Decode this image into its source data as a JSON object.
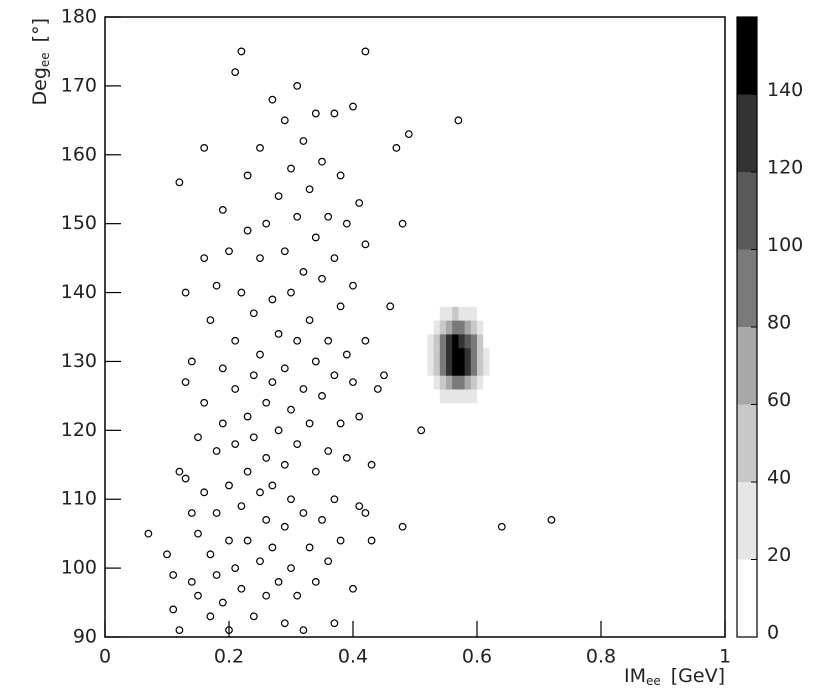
{
  "chart_data": {
    "type": "scatter",
    "x_label": {
      "main": "IM",
      "sub": "ee",
      "unit": "[GeV]"
    },
    "y_label": {
      "main": "Deg",
      "sub": "ee",
      "unit": "[°]"
    },
    "xlim": [
      0,
      1
    ],
    "xticks": [
      0,
      0.2,
      0.4,
      0.6,
      0.8,
      1
    ],
    "ylim": [
      90,
      180
    ],
    "yticks": [
      90,
      100,
      110,
      120,
      130,
      140,
      150,
      160,
      170,
      180
    ],
    "marker_color": "#000000",
    "x": [
      0.07,
      0.1,
      0.11,
      0.11,
      0.12,
      0.12,
      0.12,
      0.13,
      0.13,
      0.13,
      0.14,
      0.14,
      0.14,
      0.15,
      0.15,
      0.15,
      0.16,
      0.16,
      0.16,
      0.16,
      0.17,
      0.17,
      0.17,
      0.18,
      0.18,
      0.18,
      0.18,
      0.19,
      0.19,
      0.19,
      0.19,
      0.2,
      0.2,
      0.2,
      0.2,
      0.21,
      0.21,
      0.21,
      0.21,
      0.21,
      0.22,
      0.22,
      0.22,
      0.22,
      0.23,
      0.23,
      0.23,
      0.23,
      0.23,
      0.24,
      0.24,
      0.24,
      0.24,
      0.25,
      0.25,
      0.25,
      0.25,
      0.25,
      0.26,
      0.26,
      0.26,
      0.26,
      0.26,
      0.27,
      0.27,
      0.27,
      0.27,
      0.27,
      0.28,
      0.28,
      0.28,
      0.28,
      0.29,
      0.29,
      0.29,
      0.29,
      0.29,
      0.29,
      0.3,
      0.3,
      0.3,
      0.3,
      0.3,
      0.31,
      0.31,
      0.31,
      0.31,
      0.31,
      0.32,
      0.32,
      0.32,
      0.32,
      0.32,
      0.33,
      0.33,
      0.33,
      0.33,
      0.34,
      0.34,
      0.34,
      0.34,
      0.34,
      0.35,
      0.35,
      0.35,
      0.35,
      0.36,
      0.36,
      0.36,
      0.36,
      0.37,
      0.37,
      0.37,
      0.37,
      0.37,
      0.38,
      0.38,
      0.38,
      0.38,
      0.39,
      0.39,
      0.39,
      0.4,
      0.4,
      0.4,
      0.4,
      0.41,
      0.41,
      0.41,
      0.42,
      0.42,
      0.42,
      0.42,
      0.43,
      0.43,
      0.44,
      0.45,
      0.46,
      0.47,
      0.48,
      0.48,
      0.49,
      0.51,
      0.57,
      0.64,
      0.72
    ],
    "y": [
      105,
      102,
      99,
      94,
      91,
      114,
      156,
      140,
      127,
      113,
      108,
      98,
      130,
      119,
      105,
      96,
      145,
      161,
      124,
      111,
      102,
      93,
      136,
      117,
      108,
      99,
      141,
      152,
      129,
      121,
      95,
      146,
      112,
      104,
      91,
      172,
      133,
      126,
      118,
      100,
      175,
      140,
      109,
      97,
      157,
      149,
      122,
      114,
      104,
      137,
      128,
      119,
      93,
      161,
      145,
      131,
      111,
      101,
      150,
      124,
      116,
      107,
      96,
      168,
      139,
      127,
      112,
      103,
      154,
      134,
      120,
      98,
      165,
      146,
      129,
      115,
      106,
      92,
      158,
      140,
      123,
      110,
      100,
      170,
      151,
      133,
      118,
      96,
      162,
      143,
      126,
      108,
      91,
      155,
      136,
      121,
      103,
      166,
      148,
      130,
      114,
      98,
      159,
      142,
      125,
      107,
      151,
      133,
      117,
      101,
      166,
      145,
      128,
      110,
      92,
      157,
      138,
      121,
      104,
      150,
      131,
      116,
      167,
      141,
      127,
      97,
      153,
      122,
      109,
      175,
      147,
      133,
      108,
      115,
      104,
      126,
      128,
      138,
      161,
      150,
      106,
      163,
      120,
      165,
      106,
      107
    ],
    "histogram2d": {
      "xbins": [
        0.5,
        0.51,
        0.52,
        0.53,
        0.54,
        0.55,
        0.56,
        0.57,
        0.58,
        0.59,
        0.6,
        0.61,
        0.62,
        0.63,
        0.64
      ],
      "ybins": [
        122,
        124,
        126,
        128,
        130,
        132,
        134,
        136,
        138,
        140,
        142
      ],
      "counts": [
        [
          0,
          0,
          0,
          2,
          5,
          8,
          10,
          10,
          8,
          5,
          2,
          0,
          0,
          0
        ],
        [
          0,
          2,
          5,
          12,
          22,
          30,
          35,
          35,
          30,
          22,
          12,
          5,
          2,
          0
        ],
        [
          2,
          5,
          12,
          30,
          55,
          75,
          85,
          85,
          75,
          55,
          30,
          12,
          5,
          2
        ],
        [
          3,
          8,
          20,
          45,
          85,
          120,
          140,
          140,
          120,
          85,
          45,
          20,
          8,
          3
        ],
        [
          3,
          10,
          22,
          50,
          95,
          135,
          155,
          150,
          130,
          90,
          48,
          20,
          8,
          3
        ],
        [
          3,
          8,
          20,
          45,
          85,
          120,
          140,
          135,
          115,
          80,
          42,
          18,
          6,
          2
        ],
        [
          2,
          5,
          12,
          30,
          55,
          75,
          85,
          80,
          70,
          50,
          28,
          10,
          4,
          1
        ],
        [
          1,
          3,
          8,
          15,
          25,
          35,
          40,
          38,
          32,
          22,
          12,
          5,
          2,
          0
        ],
        [
          0,
          1,
          3,
          6,
          10,
          14,
          16,
          15,
          12,
          8,
          4,
          2,
          0,
          0
        ],
        [
          0,
          0,
          1,
          2,
          4,
          5,
          6,
          5,
          4,
          3,
          1,
          0,
          0,
          0
        ]
      ]
    },
    "zlim": [
      0,
      160
    ],
    "zticks": [
      0,
      20,
      40,
      60,
      80,
      100,
      120,
      140
    ],
    "colors": [
      "#ffffff",
      "#e6e6e6",
      "#c8c8c8",
      "#a8a8a8",
      "#7a7a7a",
      "#5a5a5a",
      "#333333",
      "#000000"
    ]
  }
}
